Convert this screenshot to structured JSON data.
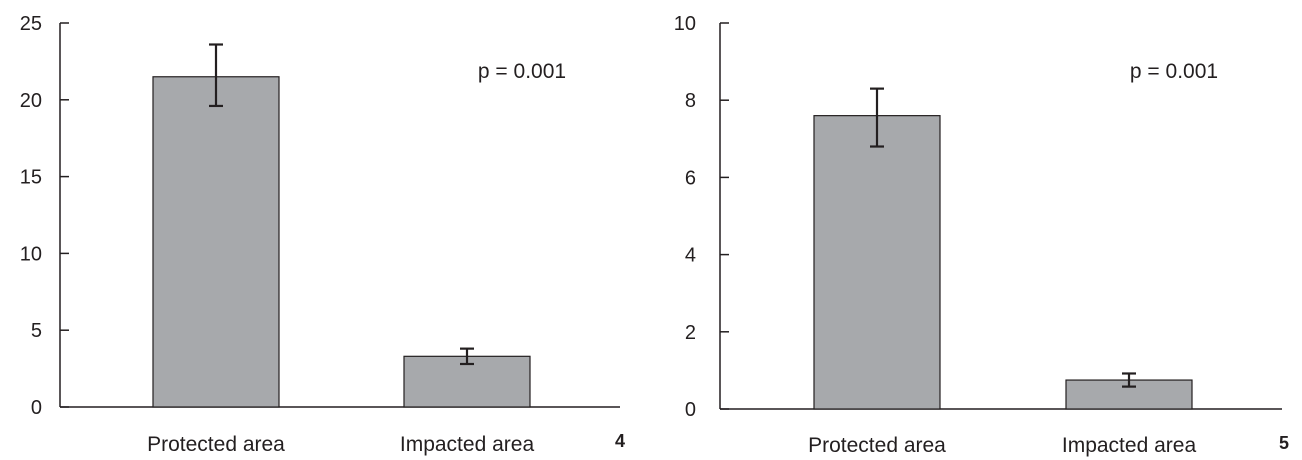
{
  "chart_data": [
    {
      "type": "bar",
      "panel_label": "4",
      "categories": [
        "Protected area",
        "Impacted area"
      ],
      "values": [
        21.5,
        3.3
      ],
      "error_low": [
        19.6,
        2.8
      ],
      "error_high": [
        23.6,
        3.8
      ],
      "ylim": [
        0,
        25
      ],
      "yticks": [
        0,
        5,
        10,
        15,
        20,
        25
      ],
      "annotation": "p = 0.001",
      "title": "",
      "xlabel": "",
      "ylabel": "",
      "bar_color": "#a7a9ac",
      "grid": false
    },
    {
      "type": "bar",
      "panel_label": "5",
      "categories": [
        "Protected area",
        "Impacted area"
      ],
      "values": [
        7.6,
        0.75
      ],
      "error_low": [
        6.8,
        0.58
      ],
      "error_high": [
        8.3,
        0.92
      ],
      "ylim": [
        0,
        10
      ],
      "yticks": [
        0,
        2,
        4,
        6,
        8,
        10
      ],
      "annotation": "p = 0.001",
      "title": "",
      "xlabel": "",
      "ylabel": "",
      "bar_color": "#a7a9ac",
      "grid": false
    }
  ]
}
